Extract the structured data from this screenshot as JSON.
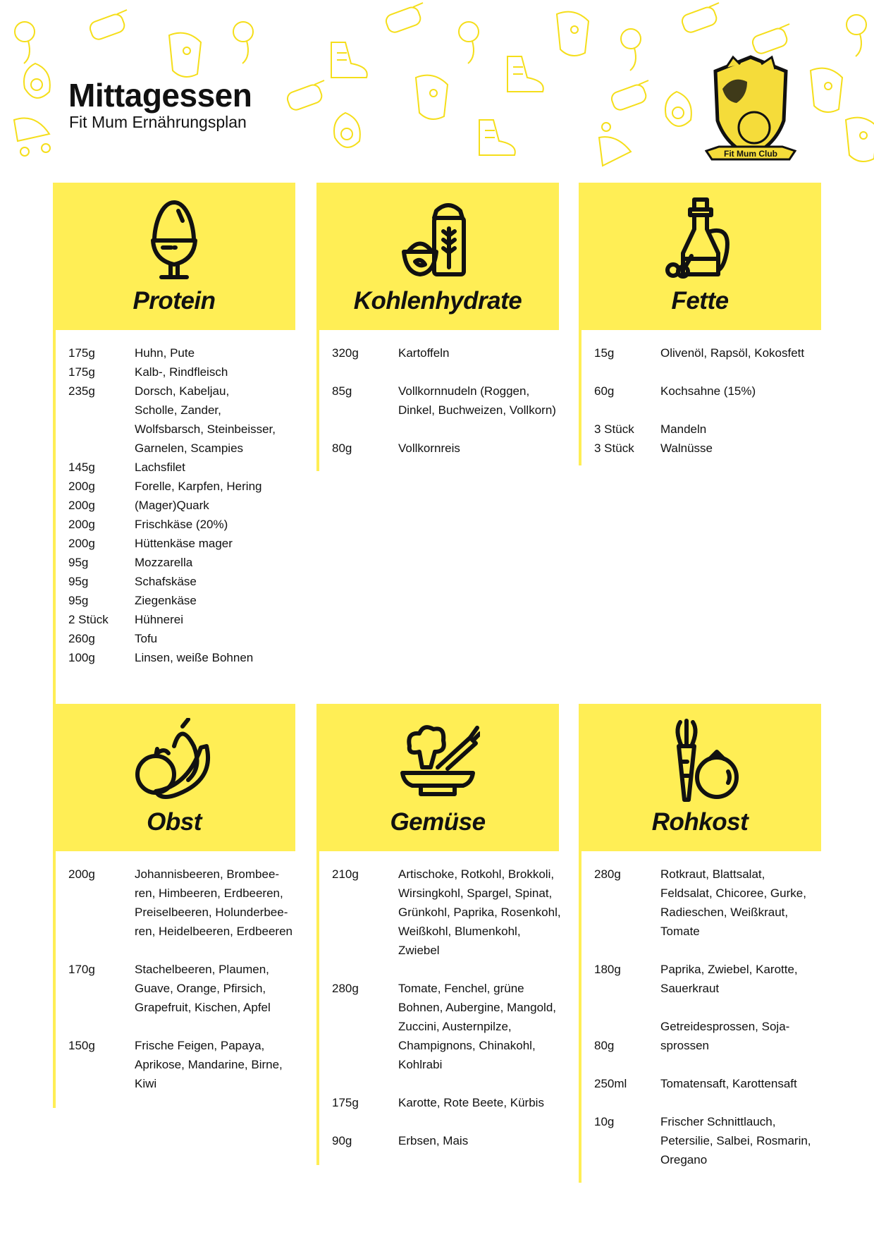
{
  "header": {
    "title": "Mittagessen",
    "subtitle": "Fit Mum Ernährungsplan"
  },
  "logo": {
    "text": "Fit Mum Club",
    "icon": "lioness-and-cub-shield"
  },
  "colors": {
    "accent": "#FFEE55",
    "text": "#111111"
  },
  "cards": [
    {
      "key": "protein",
      "title": "Protein",
      "icon": "egg-cup",
      "entries": [
        {
          "amount": "175g",
          "lines": [
            "Huhn, Pute"
          ]
        },
        {
          "amount": "175g",
          "lines": [
            "Kalb-, Rindfleisch"
          ]
        },
        {
          "amount": "235g",
          "lines": [
            "Dorsch, Kabeljau,",
            "Scholle, Zander,",
            "Wolfsbarsch, Steinbeisser,",
            "Garnelen, Scampies"
          ]
        },
        {
          "amount": "145g",
          "lines": [
            "Lachsfilet"
          ]
        },
        {
          "amount": "200g",
          "lines": [
            "Forelle, Karpfen, Hering"
          ]
        },
        {
          "amount": "200g",
          "lines": [
            "(Mager)Quark"
          ]
        },
        {
          "amount": "200g",
          "lines": [
            "Frischkäse (20%)"
          ]
        },
        {
          "amount": "200g",
          "lines": [
            "Hüttenkäse mager"
          ]
        },
        {
          "amount": "95g",
          "lines": [
            "Mozzarella"
          ]
        },
        {
          "amount": "95g",
          "lines": [
            "Schafskäse"
          ]
        },
        {
          "amount": "95g",
          "lines": [
            "Ziegenkäse"
          ]
        },
        {
          "amount": "2 Stück",
          "lines": [
            "Hühnerei"
          ]
        },
        {
          "amount": "260g",
          "lines": [
            "Tofu"
          ]
        },
        {
          "amount": "100g",
          "lines": [
            "Linsen, weiße Bohnen"
          ]
        }
      ]
    },
    {
      "key": "kohlenhydrate",
      "title": "Kohlenhydrate",
      "icon": "grain-sack-and-bowl",
      "entries": [
        {
          "amount": "320g",
          "lines": [
            "Kartoffeln"
          ]
        },
        {
          "amount": "85g",
          "lines": [
            "Vollkornnudeln (Roggen,",
            "Dinkel, Buchweizen, Vollkorn)"
          ]
        },
        {
          "amount": "80g",
          "lines": [
            "Vollkornreis"
          ]
        }
      ]
    },
    {
      "key": "fette",
      "title": "Fette",
      "icon": "oil-bottle",
      "entries": [
        {
          "amount": "15g",
          "lines": [
            "Olivenöl, Rapsöl, Kokosfett"
          ]
        },
        {
          "amount": "60g",
          "lines": [
            "Kochsahne (15%)"
          ]
        },
        {
          "amount": "3 Stück",
          "lines": [
            "Mandeln"
          ]
        },
        {
          "amount": "3 Stück",
          "lines": [
            "Walnüsse"
          ]
        }
      ]
    },
    {
      "key": "obst",
      "title": "Obst",
      "icon": "fruits",
      "entries": [
        {
          "amount": "200g",
          "lines": [
            "Johannisbeeren, Brombee-",
            "ren, Himbeeren, Erdbeeren,",
            "Preiselbeeren, Holunderbee-",
            "ren, Heidelbeeren, Erdbeeren"
          ]
        },
        {
          "amount": "170g",
          "lines": [
            "Stachelbeeren, Plaumen,",
            "Guave, Orange, Pfirsich,",
            "Grapefruit, Kischen, Apfel"
          ]
        },
        {
          "amount": "150g",
          "lines": [
            "Frische Feigen, Papaya,",
            "Aprikose, Mandarine, Birne,",
            "Kiwi"
          ]
        }
      ]
    },
    {
      "key": "gemuese",
      "title": "Gemüse",
      "icon": "vegetable-bowl",
      "entries": [
        {
          "amount": "210g",
          "lines": [
            "Artischoke, Rotkohl, Brokkoli,",
            "Wirsingkohl, Spargel, Spinat,",
            "Grünkohl, Paprika, Rosenkohl,",
            "Weißkohl, Blumenkohl,",
            "Zwiebel"
          ]
        },
        {
          "amount": "280g",
          "lines": [
            "Tomate, Fenchel, grüne",
            "Bohnen, Aubergine, Mangold,",
            "Zuccini, Austernpilze,",
            "Champignons, Chinakohl,",
            "Kohlrabi"
          ]
        },
        {
          "amount": "175g",
          "lines": [
            "Karotte, Rote Beete, Kürbis"
          ]
        },
        {
          "amount": "90g",
          "lines": [
            "Erbsen, Mais"
          ]
        }
      ]
    },
    {
      "key": "rohkost",
      "title": "Rohkost",
      "icon": "carrot-and-tomato",
      "entries": [
        {
          "amount": "280g",
          "lines": [
            "Rotkraut, Blattsalat,",
            "Feldsalat, Chicoree, Gurke,",
            "Radieschen, Weißkraut,",
            "Tomate"
          ]
        },
        {
          "amount": "180g",
          "lines": [
            "Paprika, Zwiebel, Karotte,",
            "Sauerkraut"
          ]
        },
        {
          "amount": "80g",
          "lines": [
            "Getreidesprossen, Soja-",
            "sprossen"
          ]
        },
        {
          "amount": "250ml",
          "lines": [
            "Tomatensaft, Karottensaft"
          ]
        },
        {
          "amount": "10g",
          "lines": [
            "Frischer Schnittlauch,",
            "Petersilie, Salbei, Rosmarin,",
            "Oregano"
          ]
        }
      ]
    }
  ]
}
